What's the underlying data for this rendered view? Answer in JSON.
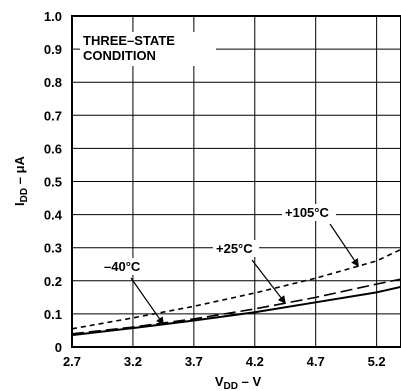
{
  "chart_data": {
    "type": "line",
    "annotation": {
      "line1": "THREE–STATE",
      "line2": "CONDITION"
    },
    "xlabel": {
      "main": "V",
      "sub": "DD",
      "suffix": " – V"
    },
    "ylabel": {
      "main": "I",
      "sub": "DD",
      "suffix": " – μA"
    },
    "xlim": [
      2.7,
      5.4
    ],
    "ylim": [
      0,
      1.0
    ],
    "x_ticks": [
      "2.7",
      "3.2",
      "3.7",
      "4.2",
      "4.7",
      "5.2"
    ],
    "y_ticks": [
      "0",
      "0.1",
      "0.2",
      "0.3",
      "0.4",
      "0.5",
      "0.6",
      "0.7",
      "0.8",
      "0.9",
      "1.0"
    ],
    "grid": true,
    "series": [
      {
        "name": "+105°C",
        "style": "short-dash",
        "x": [
          2.7,
          3.2,
          3.7,
          4.2,
          4.7,
          5.2,
          5.4
        ],
        "y": [
          0.055,
          0.088,
          0.123,
          0.163,
          0.208,
          0.26,
          0.295
        ]
      },
      {
        "name": "+25°C",
        "style": "long-dash",
        "x": [
          2.7,
          3.2,
          3.7,
          4.2,
          4.7,
          5.2,
          5.4
        ],
        "y": [
          0.04,
          0.06,
          0.085,
          0.115,
          0.15,
          0.19,
          0.205
        ]
      },
      {
        "name": "–40°C",
        "style": "solid",
        "x": [
          2.7,
          3.2,
          3.7,
          4.2,
          4.7,
          5.2,
          5.4
        ],
        "y": [
          0.036,
          0.057,
          0.08,
          0.105,
          0.135,
          0.165,
          0.182
        ]
      }
    ],
    "series_labels": [
      {
        "text": "+105°C",
        "series": 0
      },
      {
        "text": "+25°C",
        "series": 1
      },
      {
        "text": "–40°C",
        "series": 2
      }
    ]
  }
}
